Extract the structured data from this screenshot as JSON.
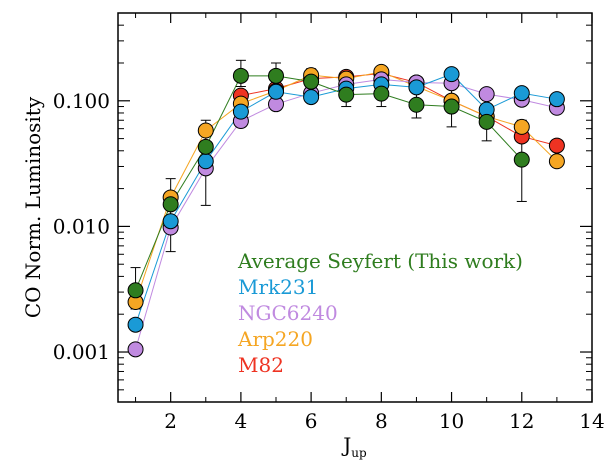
{
  "chart_data": {
    "type": "line",
    "title": "",
    "xlabel": "J",
    "xlabel_sub": "up",
    "ylabel": "CO Norm. Luminosity",
    "xlim": [
      0.5,
      14
    ],
    "ylim": [
      0.0004,
      0.5
    ],
    "yscale": "log",
    "grid": false,
    "legend_position": "lower-right",
    "x_ticks": [
      2,
      4,
      6,
      8,
      10,
      12,
      14
    ],
    "x_tick_labels": [
      "2",
      "4",
      "6",
      "8",
      "10",
      "12",
      "14"
    ],
    "y_ticks": [
      0.001,
      0.01,
      0.1
    ],
    "y_tick_labels": [
      "0.001",
      "0.010",
      "0.100"
    ],
    "series": [
      {
        "name": "M82",
        "color": "#ee3322",
        "x": [
          4,
          5,
          6,
          7,
          8,
          9,
          10,
          11,
          12,
          13
        ],
        "y": [
          0.11,
          0.125,
          0.15,
          0.155,
          0.165,
          0.14,
          0.1,
          0.075,
          0.052,
          0.044
        ]
      },
      {
        "name": "Arp220",
        "color": "#f5a623",
        "x": [
          1,
          2,
          3,
          4,
          5,
          6,
          7,
          8,
          9,
          10,
          11,
          12,
          13
        ],
        "y": [
          0.0025,
          0.017,
          0.058,
          0.095,
          0.12,
          0.16,
          0.15,
          0.17,
          0.13,
          0.1,
          0.075,
          0.062,
          0.033
        ]
      },
      {
        "name": "NGC6240",
        "color": "#c08ae0",
        "x": [
          1,
          2,
          3,
          4,
          5,
          6,
          7,
          8,
          9,
          10,
          11,
          12,
          13
        ],
        "y": [
          0.00105,
          0.0098,
          0.029,
          0.069,
          0.094,
          0.115,
          0.135,
          0.148,
          0.14,
          0.138,
          0.113,
          0.102,
          0.088
        ]
      },
      {
        "name": "Mrk231",
        "color": "#1a9ad6",
        "x": [
          1,
          2,
          3,
          4,
          5,
          6,
          7,
          8,
          9,
          10,
          11,
          12,
          13
        ],
        "y": [
          0.00165,
          0.011,
          0.033,
          0.082,
          0.118,
          0.107,
          0.125,
          0.135,
          0.128,
          0.163,
          0.085,
          0.115,
          0.103
        ]
      },
      {
        "name": "Average Seyfert (This work)",
        "color": "#2f7d1f",
        "x": [
          1,
          2,
          3,
          4,
          5,
          6,
          7,
          8,
          9,
          10,
          11,
          12,
          13
        ],
        "y": [
          0.0031,
          0.015,
          0.043,
          0.158,
          0.158,
          0.142,
          0.112,
          0.114,
          0.093,
          0.09,
          0.068,
          0.034,
          null
        ],
        "err_low": [
          0.0022,
          0.0063,
          0.0147,
          0.13,
          0.1,
          0.1,
          0.09,
          0.09,
          0.073,
          0.062,
          0.048,
          0.0158,
          null
        ],
        "err_high": [
          0.0047,
          0.024,
          0.07,
          0.21,
          0.2,
          0.18,
          0.14,
          0.14,
          0.118,
          0.13,
          0.09,
          0.07,
          null
        ]
      }
    ],
    "legend": [
      {
        "label": "Average Seyfert (This work)",
        "color": "#2f7d1f"
      },
      {
        "label": "Mrk231",
        "color": "#1a9ad6"
      },
      {
        "label": "NGC6240",
        "color": "#c08ae0"
      },
      {
        "label": "Arp220",
        "color": "#f5a623"
      },
      {
        "label": "M82",
        "color": "#ee3322"
      }
    ]
  }
}
